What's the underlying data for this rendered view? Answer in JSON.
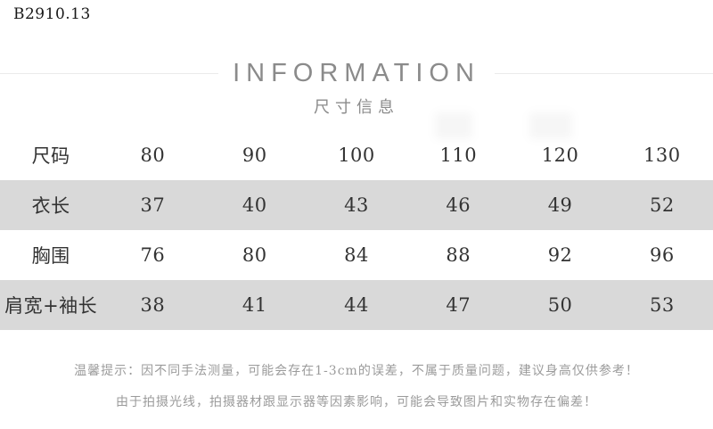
{
  "product_code": "B2910.13",
  "header": {
    "title": "INFORMATION",
    "subtitle": "尺寸信息"
  },
  "size_table": {
    "columns": [
      "尺码",
      "80",
      "90",
      "100",
      "110",
      "120",
      "130"
    ],
    "rows": [
      {
        "label": "衣长",
        "values": [
          "37",
          "40",
          "43",
          "46",
          "49",
          "52"
        ]
      },
      {
        "label": "胸围",
        "values": [
          "76",
          "80",
          "84",
          "88",
          "92",
          "96"
        ]
      },
      {
        "label": "肩宽+袖长",
        "values": [
          "38",
          "41",
          "44",
          "47",
          "50",
          "53"
        ]
      }
    ]
  },
  "tips": {
    "line1": "温馨提示：因不同手法测量，可能会存在1-3cm的误差，不属于质量问题，建议身高仅供参考！",
    "line2": "由于拍摄光线，拍摄器材跟显示器等因素影响，可能会导致图片和实物存在偏差！"
  },
  "colors": {
    "stripe": "#d9d9d9",
    "header_text": "#8b8b8b",
    "table_text": "#333333",
    "tip_text": "#9b9b9b",
    "divider": "#ebebeb"
  }
}
